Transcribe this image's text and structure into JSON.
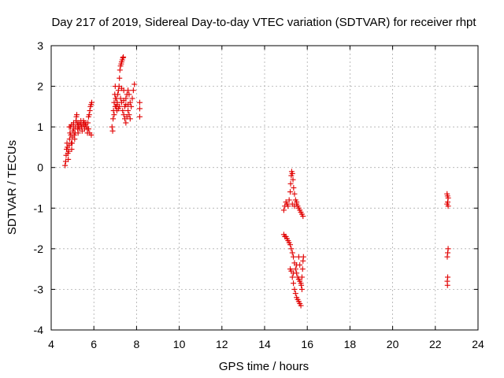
{
  "chart_data": {
    "type": "scatter",
    "title": "Day 217 of 2019, Sidereal Day-to-day VTEC variation (SDTVAR) for receiver rhpt",
    "xlabel": "GPS time / hours",
    "ylabel": "SDTVAR / TECUs",
    "xlim": [
      4,
      24
    ],
    "ylim": [
      -4,
      3
    ],
    "xticks": [
      "4",
      "6",
      "8",
      "10",
      "12",
      "14",
      "16",
      "18",
      "20",
      "22",
      "24"
    ],
    "yticks": [
      "-4",
      "-3",
      "-2",
      "-1",
      "0",
      "1",
      "2",
      "3"
    ],
    "grid": true,
    "marker": "plus",
    "color": "#e00000",
    "series": [
      {
        "name": "rhpt",
        "points": [
          [
            4.65,
            0.05
          ],
          [
            4.68,
            0.15
          ],
          [
            4.7,
            0.3
          ],
          [
            4.72,
            0.45
          ],
          [
            4.74,
            0.6
          ],
          [
            4.76,
            0.5
          ],
          [
            4.78,
            0.35
          ],
          [
            4.8,
            0.2
          ],
          [
            4.82,
            0.4
          ],
          [
            4.84,
            0.55
          ],
          [
            4.86,
            0.7
          ],
          [
            4.88,
            0.85
          ],
          [
            4.9,
            1.0
          ],
          [
            4.92,
            0.8
          ],
          [
            4.94,
            0.6
          ],
          [
            4.96,
            0.45
          ],
          [
            4.98,
            0.6
          ],
          [
            5.0,
            0.75
          ],
          [
            5.02,
            0.9
          ],
          [
            5.04,
            1.05
          ],
          [
            5.06,
            0.95
          ],
          [
            5.08,
            0.8
          ],
          [
            5.1,
            0.7
          ],
          [
            5.12,
            0.85
          ],
          [
            5.14,
            1.0
          ],
          [
            5.16,
            1.15
          ],
          [
            5.18,
            1.25
          ],
          [
            5.2,
            1.3
          ],
          [
            5.22,
            1.1
          ],
          [
            5.24,
            0.95
          ],
          [
            5.26,
            0.85
          ],
          [
            5.28,
            1.0
          ],
          [
            5.3,
            1.1
          ],
          [
            5.33,
            0.95
          ],
          [
            5.36,
            1.05
          ],
          [
            5.39,
            1.15
          ],
          [
            5.42,
            1.0
          ],
          [
            5.45,
            0.9
          ],
          [
            5.48,
            1.05
          ],
          [
            5.51,
            1.15
          ],
          [
            5.54,
            1.05
          ],
          [
            5.57,
            0.95
          ],
          [
            5.6,
            1.05
          ],
          [
            5.63,
            1.1
          ],
          [
            5.66,
            1.0
          ],
          [
            5.69,
            0.95
          ],
          [
            5.72,
            1.1
          ],
          [
            5.75,
            1.25
          ],
          [
            5.78,
            1.3
          ],
          [
            5.81,
            1.4
          ],
          [
            5.84,
            1.5
          ],
          [
            5.87,
            1.55
          ],
          [
            5.9,
            1.6
          ],
          [
            5.7,
            0.85
          ],
          [
            5.75,
            0.95
          ],
          [
            5.8,
            0.85
          ],
          [
            5.88,
            0.8
          ],
          [
            4.85,
            1.0
          ],
          [
            4.95,
            1.05
          ],
          [
            5.05,
            1.1
          ],
          [
            5.25,
            1.05
          ],
          [
            5.4,
            1.1
          ],
          [
            5.55,
            1.1
          ],
          [
            6.85,
            1.0
          ],
          [
            6.88,
            0.9
          ],
          [
            6.9,
            1.2
          ],
          [
            6.92,
            1.4
          ],
          [
            6.95,
            1.6
          ],
          [
            6.98,
            1.8
          ],
          [
            7.0,
            2.0
          ],
          [
            7.02,
            1.7
          ],
          [
            7.05,
            1.5
          ],
          [
            7.08,
            1.4
          ],
          [
            7.1,
            1.6
          ],
          [
            7.12,
            1.8
          ],
          [
            7.15,
            1.9
          ],
          [
            7.18,
            2.0
          ],
          [
            7.2,
            2.2
          ],
          [
            7.22,
            2.4
          ],
          [
            7.25,
            2.5
          ],
          [
            7.28,
            2.55
          ],
          [
            7.3,
            2.6
          ],
          [
            7.33,
            2.65
          ],
          [
            7.36,
            2.7
          ],
          [
            7.38,
            2.72
          ],
          [
            7.2,
            1.5
          ],
          [
            7.25,
            1.7
          ],
          [
            7.3,
            1.6
          ],
          [
            7.35,
            1.4
          ],
          [
            7.4,
            1.3
          ],
          [
            7.45,
            1.5
          ],
          [
            7.5,
            1.7
          ],
          [
            7.55,
            1.8
          ],
          [
            7.6,
            1.9
          ],
          [
            7.65,
            1.8
          ],
          [
            7.7,
            1.6
          ],
          [
            7.75,
            1.5
          ],
          [
            7.8,
            1.7
          ],
          [
            7.85,
            1.9
          ],
          [
            7.9,
            2.05
          ],
          [
            7.45,
            1.2
          ],
          [
            7.5,
            1.1
          ],
          [
            7.55,
            1.25
          ],
          [
            7.6,
            1.4
          ],
          [
            7.65,
            1.3
          ],
          [
            7.7,
            1.2
          ],
          [
            7.1,
            1.55
          ],
          [
            7.15,
            1.45
          ],
          [
            7.4,
            1.65
          ],
          [
            7.5,
            1.55
          ],
          [
            6.95,
            1.3
          ],
          [
            7.0,
            1.5
          ],
          [
            7.05,
            1.7
          ],
          [
            7.4,
            1.9
          ],
          [
            7.3,
            1.95
          ],
          [
            7.6,
            1.55
          ],
          [
            8.15,
            1.6
          ],
          [
            8.15,
            1.45
          ],
          [
            8.15,
            1.25
          ],
          [
            14.9,
            -1.05
          ],
          [
            14.95,
            -0.95
          ],
          [
            15.0,
            -0.85
          ],
          [
            15.05,
            -0.9
          ],
          [
            15.1,
            -0.95
          ],
          [
            15.15,
            -0.8
          ],
          [
            15.2,
            -0.6
          ],
          [
            15.22,
            -0.4
          ],
          [
            15.25,
            -0.2
          ],
          [
            15.27,
            -0.1
          ],
          [
            15.3,
            -0.15
          ],
          [
            15.33,
            -0.3
          ],
          [
            15.36,
            -0.5
          ],
          [
            15.4,
            -0.65
          ],
          [
            15.45,
            -0.8
          ],
          [
            15.5,
            -0.9
          ],
          [
            15.55,
            -0.95
          ],
          [
            15.6,
            -1.0
          ],
          [
            15.65,
            -1.05
          ],
          [
            15.7,
            -1.1
          ],
          [
            15.75,
            -1.15
          ],
          [
            15.8,
            -1.2
          ],
          [
            15.3,
            -0.9
          ],
          [
            15.4,
            -0.95
          ],
          [
            15.5,
            -0.85
          ],
          [
            14.9,
            -1.65
          ],
          [
            14.95,
            -1.7
          ],
          [
            15.0,
            -1.7
          ],
          [
            15.05,
            -1.75
          ],
          [
            15.1,
            -1.8
          ],
          [
            15.15,
            -1.85
          ],
          [
            15.2,
            -1.9
          ],
          [
            15.25,
            -2.0
          ],
          [
            15.3,
            -2.1
          ],
          [
            15.35,
            -2.2
          ],
          [
            15.4,
            -2.35
          ],
          [
            15.45,
            -2.5
          ],
          [
            15.5,
            -2.6
          ],
          [
            15.55,
            -2.7
          ],
          [
            15.6,
            -2.75
          ],
          [
            15.65,
            -2.8
          ],
          [
            15.7,
            -2.85
          ],
          [
            15.72,
            -2.9
          ],
          [
            15.75,
            -2.7
          ],
          [
            15.78,
            -2.5
          ],
          [
            15.8,
            -2.3
          ],
          [
            15.82,
            -2.2
          ],
          [
            15.2,
            -2.5
          ],
          [
            15.25,
            -2.55
          ],
          [
            15.3,
            -2.7
          ],
          [
            15.35,
            -2.85
          ],
          [
            15.4,
            -3.0
          ],
          [
            15.45,
            -3.1
          ],
          [
            15.5,
            -3.2
          ],
          [
            15.55,
            -3.25
          ],
          [
            15.6,
            -3.3
          ],
          [
            15.65,
            -3.35
          ],
          [
            15.7,
            -3.4
          ],
          [
            15.75,
            -3.0
          ],
          [
            15.6,
            -2.2
          ],
          [
            15.65,
            -2.4
          ],
          [
            15.5,
            -2.4
          ],
          [
            15.35,
            -2.6
          ],
          [
            22.55,
            -0.65
          ],
          [
            22.57,
            -0.7
          ],
          [
            22.6,
            -0.75
          ],
          [
            22.58,
            -0.85
          ],
          [
            22.55,
            -0.9
          ],
          [
            22.6,
            -0.95
          ],
          [
            22.6,
            -2.0
          ],
          [
            22.58,
            -2.1
          ],
          [
            22.56,
            -2.2
          ],
          [
            22.58,
            -2.7
          ],
          [
            22.56,
            -2.8
          ],
          [
            22.57,
            -2.9
          ]
        ]
      }
    ]
  }
}
